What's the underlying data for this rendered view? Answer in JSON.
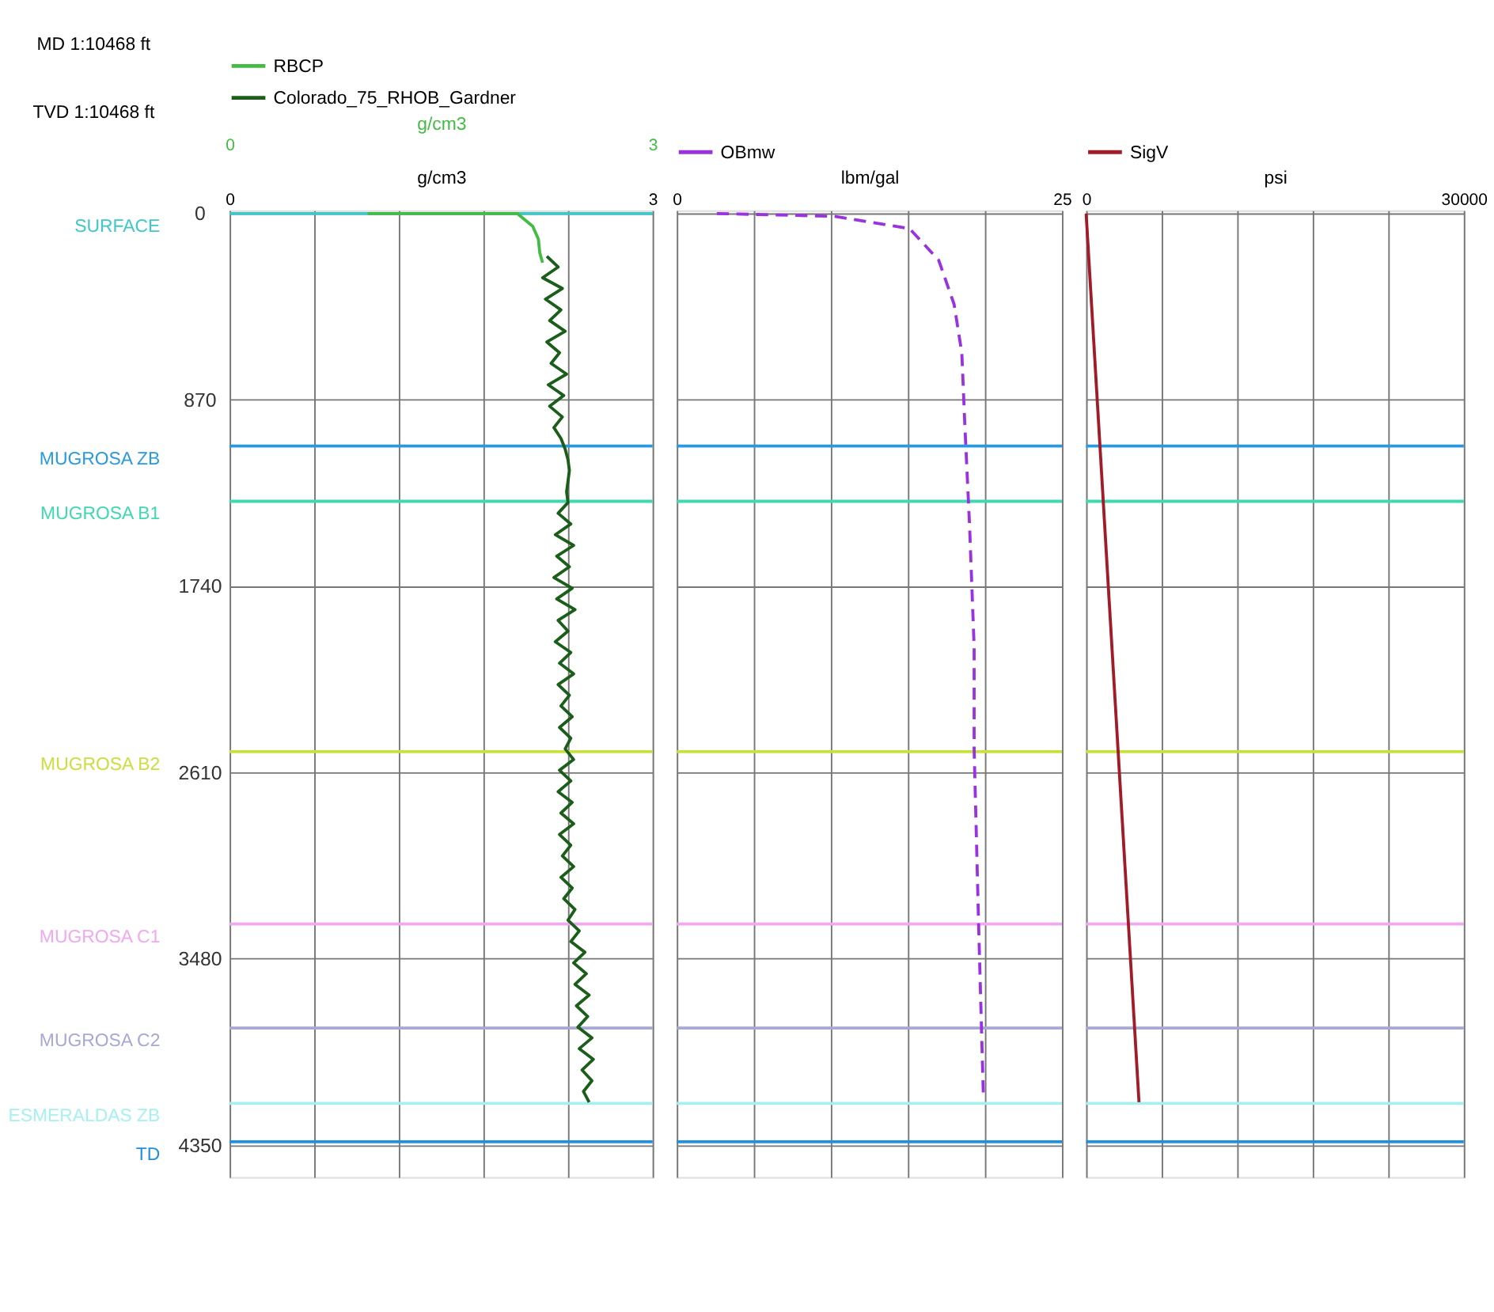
{
  "chart_data": [
    {
      "type": "line",
      "legend": "top",
      "grid": true,
      "xlabel": "g/cm3",
      "x2label": "g/cm3",
      "xlim": [
        0,
        3
      ],
      "x2lim": [
        0,
        3
      ],
      "xticks": [
        0,
        {
          "value": 0.6,
          "label": null
        },
        {
          "value": 1.2,
          "label": null
        },
        {
          "value": 1.8,
          "label": null
        },
        {
          "value": 2.4,
          "label": null
        },
        3
      ],
      "x2ticks": [
        0,
        3
      ],
      "ylim": [
        4500,
        -15
      ],
      "yticks": [
        0,
        870,
        1740,
        2610,
        3480,
        4350
      ],
      "annotations": [
        "MD 1:10468 ft",
        "TVD 1:10468 ft"
      ],
      "series": [
        {
          "name": "RBCP",
          "color": "#44bb44",
          "axis": "x2",
          "values": [
            0,
            0,
            60,
            120,
            184,
            230
          ],
          "x": [
            0.98,
            2.04,
            2.15,
            2.19,
            2.2,
            2.22
          ]
        },
        {
          "name": "Colorado_75_RHOB_Gardner",
          "color": "#1a5e1a",
          "values": [
            200,
            250,
            300,
            350,
            400,
            450,
            500,
            550,
            600,
            650,
            700,
            750,
            800,
            850,
            900,
            950,
            1000,
            1050,
            1100,
            1150,
            1200,
            1250,
            1300,
            1350,
            1400,
            1450,
            1500,
            1550,
            1600,
            1650,
            1700,
            1750,
            1800,
            1850,
            1900,
            1950,
            2000,
            2050,
            2100,
            2150,
            2200,
            2250,
            2300,
            2350,
            2400,
            2450,
            2500,
            2550,
            2600,
            2650,
            2700,
            2750,
            2800,
            2850,
            2900,
            2950,
            3000,
            3050,
            3100,
            3150,
            3200,
            3250,
            3300,
            3350,
            3400,
            3450,
            3500,
            3550,
            3600,
            3650,
            3700,
            3750,
            3800,
            3850,
            3900,
            3950,
            4000,
            4050,
            4100,
            4150
          ],
          "x": [
            2.25,
            2.33,
            2.22,
            2.36,
            2.24,
            2.35,
            2.27,
            2.38,
            2.25,
            2.34,
            2.28,
            2.39,
            2.26,
            2.37,
            2.27,
            2.36,
            2.3,
            2.35,
            2.38,
            2.4,
            2.41,
            2.4,
            2.39,
            2.4,
            2.33,
            2.42,
            2.31,
            2.44,
            2.32,
            2.41,
            2.3,
            2.43,
            2.32,
            2.45,
            2.33,
            2.4,
            2.31,
            2.42,
            2.34,
            2.44,
            2.33,
            2.41,
            2.35,
            2.43,
            2.34,
            2.42,
            2.38,
            2.44,
            2.34,
            2.42,
            2.33,
            2.43,
            2.35,
            2.44,
            2.34,
            2.42,
            2.36,
            2.44,
            2.35,
            2.43,
            2.37,
            2.45,
            2.4,
            2.48,
            2.42,
            2.52,
            2.44,
            2.53,
            2.45,
            2.55,
            2.46,
            2.54,
            2.47,
            2.57,
            2.48,
            2.58,
            2.5,
            2.57,
            2.51,
            2.55
          ]
        }
      ],
      "ref_lines": [
        {
          "axis": "y",
          "value": 0,
          "label": "SURFACE",
          "color": "#40c8c8"
        },
        {
          "axis": "y",
          "value": 1086,
          "label": "MUGROSA ZB",
          "color": "#2a9ae0"
        },
        {
          "axis": "y",
          "value": 1344,
          "label": "MUGROSA B1",
          "color": "#40d8b0"
        },
        {
          "axis": "y",
          "value": 2513,
          "label": "MUGROSA B2",
          "color": "#c8e040"
        },
        {
          "axis": "y",
          "value": 3318,
          "label": "MUGROSA C1",
          "color": "#f0a8f0"
        },
        {
          "axis": "y",
          "value": 3804,
          "label": "MUGROSA C2",
          "color": "#a8a8d8"
        },
        {
          "axis": "y",
          "value": 4156,
          "label": "ESMERALDAS ZB",
          "color": "#a8f0f0"
        },
        {
          "axis": "y",
          "value": 4335,
          "label": "TD",
          "color": "#2090e0"
        }
      ]
    },
    {
      "type": "line",
      "legend": "top",
      "grid": true,
      "tick_labels": "x",
      "line_style": "dashed",
      "xlabel": "lbm/gal",
      "xlim": [
        0,
        25
      ],
      "xticks": [
        0,
        {
          "value": 5,
          "label": null
        },
        {
          "value": 10,
          "label": null
        },
        {
          "value": 15,
          "label": null
        },
        {
          "value": 20,
          "label": null
        },
        25
      ],
      "ylim": [
        4500,
        -15
      ],
      "yticks": [
        {
          "value": 0,
          "label": null
        },
        {
          "value": 870,
          "label": null
        },
        {
          "value": 1740,
          "label": null
        },
        {
          "value": 2610,
          "label": null
        },
        {
          "value": 3480,
          "label": null
        },
        {
          "value": 4350,
          "label": null
        }
      ],
      "series": [
        {
          "name": "OBmw",
          "color": "#9933dd",
          "values": [
            0,
            13,
            70,
            218,
            424,
            651,
            993,
            1452,
            2023,
            2500,
            3346,
            4123
          ],
          "x": [
            2.6,
            10.2,
            15.1,
            17.0,
            18.0,
            18.5,
            18.7,
            19.0,
            19.3,
            19.3,
            19.6,
            19.9
          ]
        }
      ],
      "ref_lines": [
        {
          "axis": "y",
          "value": 1086,
          "color": "#2a9ae0"
        },
        {
          "axis": "y",
          "value": 1344,
          "color": "#40d8b0"
        },
        {
          "axis": "y",
          "value": 2513,
          "color": "#c8e040"
        },
        {
          "axis": "y",
          "value": 3318,
          "color": "#f0a8f0"
        },
        {
          "axis": "y",
          "value": 3804,
          "color": "#a8a8d8"
        },
        {
          "axis": "y",
          "value": 4156,
          "color": "#a8f0f0"
        },
        {
          "axis": "y",
          "value": 4335,
          "color": "#2090e0"
        }
      ]
    },
    {
      "type": "line",
      "legend": "top",
      "grid": true,
      "tick_labels": "x",
      "xlabel": "psi",
      "xlim": [
        0,
        30000
      ],
      "xticks": [
        0,
        {
          "value": 6000,
          "label": null
        },
        {
          "value": 12000,
          "label": null
        },
        {
          "value": 18000,
          "label": null
        },
        {
          "value": 24000,
          "label": null
        },
        30000
      ],
      "ylim": [
        4500,
        -15
      ],
      "yticks": [
        {
          "value": 0,
          "label": null
        },
        {
          "value": 870,
          "label": null
        },
        {
          "value": 1740,
          "label": null
        },
        {
          "value": 2610,
          "label": null
        },
        {
          "value": 3480,
          "label": null
        },
        {
          "value": 4350,
          "label": null
        }
      ],
      "series": [
        {
          "name": "SigV",
          "color": "#a01c28",
          "values": [
            0,
            4150
          ],
          "x": [
            0,
            4200
          ]
        }
      ],
      "ref_lines": [
        {
          "axis": "y",
          "value": 1086,
          "color": "#2a9ae0"
        },
        {
          "axis": "y",
          "value": 1344,
          "color": "#40d8b0"
        },
        {
          "axis": "y",
          "value": 2513,
          "color": "#c8e040"
        },
        {
          "axis": "y",
          "value": 3318,
          "color": "#f0a8f0"
        },
        {
          "axis": "y",
          "value": 3804,
          "color": "#a8a8d8"
        },
        {
          "axis": "y",
          "value": 4156,
          "color": "#a8f0f0"
        },
        {
          "axis": "y",
          "value": 4335,
          "color": "#2090e0"
        }
      ]
    }
  ]
}
